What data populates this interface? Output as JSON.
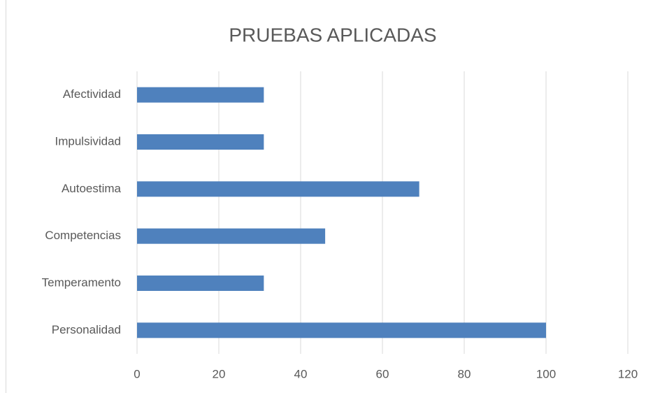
{
  "chart_data": {
    "type": "bar",
    "orientation": "horizontal",
    "title": "PRUEBAS APLICADAS",
    "categories": [
      "Afectividad",
      "Impulsividad",
      "Autoestima",
      "Competencias",
      "Temperamento",
      "Personalidad"
    ],
    "values": [
      31,
      31,
      69,
      46,
      31,
      100
    ],
    "color": "#4f81bd",
    "xlim": [
      0,
      120
    ],
    "xticks": [
      0,
      20,
      40,
      60,
      80,
      100,
      120
    ],
    "grid": true
  }
}
